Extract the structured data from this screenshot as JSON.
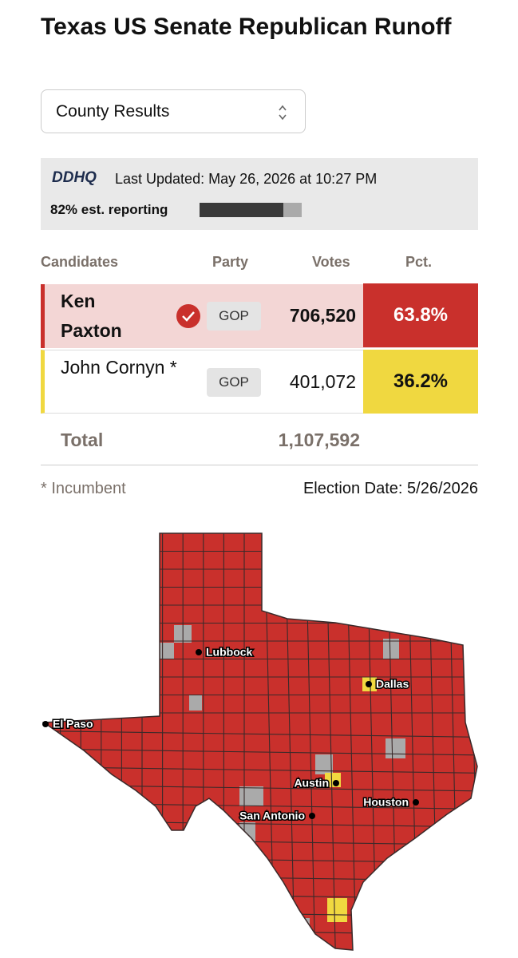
{
  "header": {
    "title": "Texas US Senate Republican Runoff"
  },
  "dropdown": {
    "selected": "County Results"
  },
  "status": {
    "source": "DDHQ",
    "updated": "Last Updated: May 26, 2026 at 10:27 PM",
    "reporting": {
      "label": "82% est. reporting",
      "value": 82
    }
  },
  "table": {
    "columns": [
      "Candidates",
      "Party",
      "Votes",
      "Pct."
    ],
    "rows": [
      {
        "candidate": "Ken Paxton",
        "party": "GOP",
        "votes": "706,520",
        "pct": "63.8%",
        "winner": true,
        "color": "#c9302c"
      },
      {
        "candidate": "John Cornyn *",
        "party": "GOP",
        "votes": "401,072",
        "pct": "36.2%",
        "winner": false,
        "color": "#f0d840"
      }
    ],
    "total": {
      "label": "Total",
      "votes": "1,107,592"
    }
  },
  "footer": {
    "note": "* Incumbent",
    "election_date": "Election Date: 5/26/2026"
  },
  "map": {
    "cities": [
      "Lubbock",
      "Dallas",
      "El Paso",
      "Austin",
      "Houston",
      "San Antonio"
    ]
  }
}
